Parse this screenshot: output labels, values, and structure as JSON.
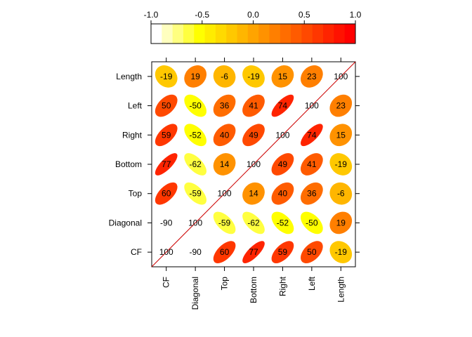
{
  "chart_data": {
    "type": "heatmap",
    "subtype": "correlation-ellipse-plot",
    "variables": [
      "CF",
      "Diagonal",
      "Top",
      "Bottom",
      "Right",
      "Left",
      "Length"
    ],
    "matrix": [
      [
        100,
        -90,
        60,
        77,
        59,
        50,
        -19
      ],
      [
        -90,
        100,
        -59,
        -62,
        -52,
        -50,
        19
      ],
      [
        60,
        -59,
        100,
        14,
        40,
        36,
        -6
      ],
      [
        77,
        -62,
        14,
        100,
        49,
        41,
        -19
      ],
      [
        59,
        -52,
        40,
        49,
        100,
        74,
        15
      ],
      [
        50,
        -50,
        36,
        41,
        74,
        100,
        23
      ],
      [
        -19,
        19,
        -6,
        -19,
        15,
        23,
        100
      ]
    ],
    "colorbar": {
      "range": [
        -1,
        1
      ],
      "ticks": [
        "-1.0",
        "-0.5",
        "0.0",
        "0.5",
        "1.0"
      ],
      "colors": [
        "#ffffff",
        "#ffffbf",
        "#ffff80",
        "#ffff40",
        "#ffff00",
        "#ffec00",
        "#ffda00",
        "#ffc800",
        "#ffb600",
        "#ffa400",
        "#ff9200",
        "#ff7f00",
        "#ff6d00",
        "#ff5b00",
        "#ff4900",
        "#ff3700",
        "#ff2400",
        "#ff1200",
        "#ff0000"
      ]
    },
    "diagonal_line_color": "#cc0000"
  }
}
